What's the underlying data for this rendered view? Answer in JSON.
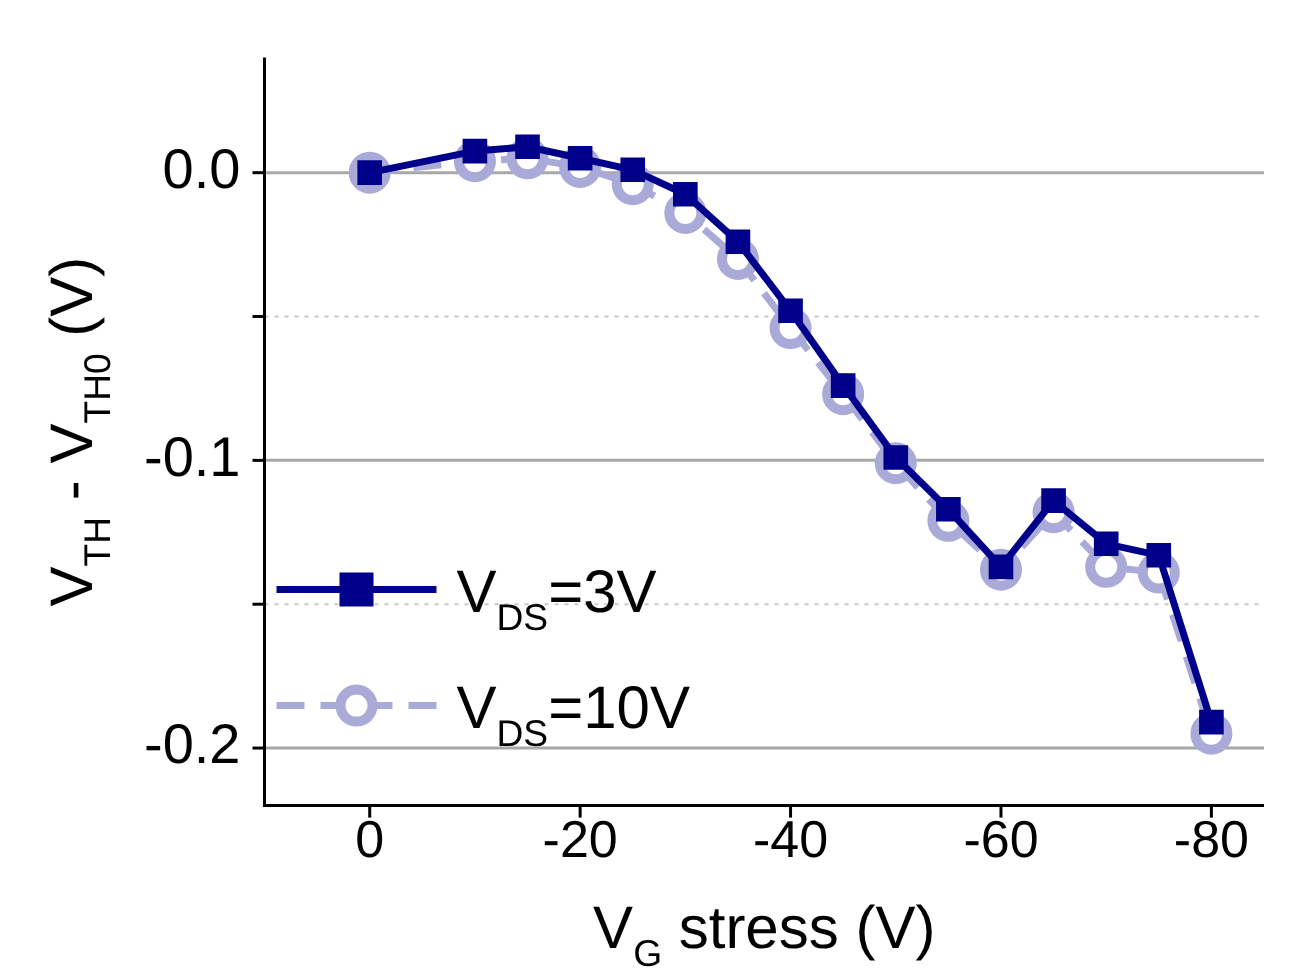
{
  "chart_data": {
    "type": "line",
    "xlabel": "V$_{G}$ stress (V)",
    "ylabel": "V$_{TH}$ - V$_{TH0}$ (V)",
    "x": [
      0,
      -10,
      -15,
      -20,
      -25,
      -30,
      -35,
      -40,
      -45,
      -50,
      -55,
      -60,
      -65,
      -70,
      -75,
      -80
    ],
    "xlim": [
      10,
      -85
    ],
    "xticks": [
      0,
      -20,
      -40,
      -60,
      -80
    ],
    "ylim": [
      -0.22,
      0.04
    ],
    "yticks": [
      {
        "value": 0,
        "label": "0.0"
      },
      {
        "value": -0.05,
        "label": null
      },
      {
        "value": -0.1,
        "label": "-0.1"
      },
      {
        "value": -0.15,
        "label": null
      },
      {
        "value": -0.2,
        "label": "-0.2"
      }
    ],
    "grid": "y",
    "legend": "bottom left",
    "series": [
      {
        "name": "V$_{DS}$=3V",
        "color": "#00008b",
        "marker": "square",
        "line_style": "solid",
        "values": [
          0,
          0.0075,
          0.009,
          0.005,
          0.001,
          -0.0075,
          -0.024,
          -0.048,
          -0.074,
          -0.099,
          -0.117,
          -0.137,
          -0.114,
          -0.129,
          -0.133,
          -0.191
        ]
      },
      {
        "name": "V$_{DS}$=10V",
        "color": "#aaaad8",
        "marker": "circle",
        "line_style": "dashed",
        "values": [
          0,
          0.004,
          0.005,
          0.002,
          -0.004,
          -0.014,
          -0.03,
          -0.054,
          -0.077,
          -0.101,
          -0.121,
          -0.138,
          -0.118,
          -0.137,
          -0.139,
          -0.195
        ]
      }
    ]
  }
}
